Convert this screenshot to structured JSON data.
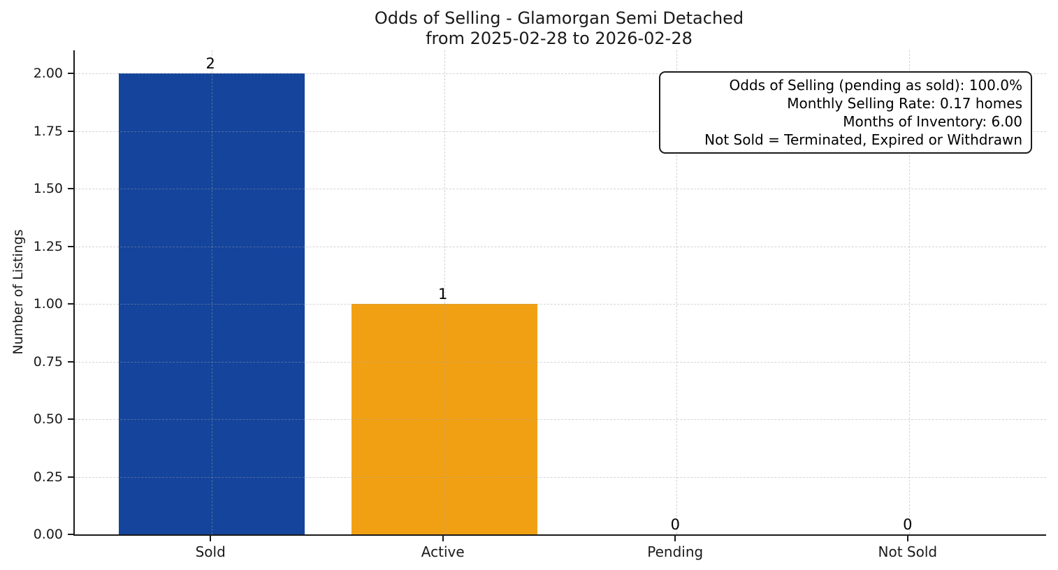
{
  "header": {
    "title_line1": "Odds of Selling - Glamorgan Semi Detached",
    "title_line2": "from 2025-02-28 to 2026-02-28"
  },
  "chart_data": {
    "type": "bar",
    "title": "Odds of Selling - Glamorgan Semi Detached",
    "subtitle": "from 2025-02-28 to 2026-02-28",
    "categories": [
      "Sold",
      "Active",
      "Pending",
      "Not Sold"
    ],
    "values": [
      2,
      1,
      0,
      0
    ],
    "bar_value_labels": [
      "2",
      "1",
      "0",
      "0"
    ],
    "bar_colors": [
      "#14449c",
      "#f2a013",
      null,
      null
    ],
    "xlabel": "",
    "ylabel": "Number of Listings",
    "ylim": [
      0,
      2.1
    ],
    "ytick_values": [
      0,
      0.25,
      0.5,
      0.75,
      1,
      1.25,
      1.5,
      1.75,
      2
    ],
    "ytick_labels": [
      "0.00",
      "0.25",
      "0.50",
      "0.75",
      "1.00",
      "1.25",
      "1.50",
      "1.75",
      "2.00"
    ],
    "grid": {
      "style": "dashed",
      "axes": "both",
      "color": "#d9d9d9"
    },
    "legend": null,
    "annotation": {
      "lines": [
        "Odds of Selling (pending as sold): 100.0%",
        "Monthly Selling Rate: 0.17 homes",
        "Months of Inventory: 6.00",
        "Not Sold = Terminated, Expired or Withdrawn"
      ]
    }
  },
  "colors": {
    "sold_bar": "#14449c",
    "active_bar": "#f2a013",
    "axis": "#1a1a1a",
    "background": "#ffffff"
  }
}
